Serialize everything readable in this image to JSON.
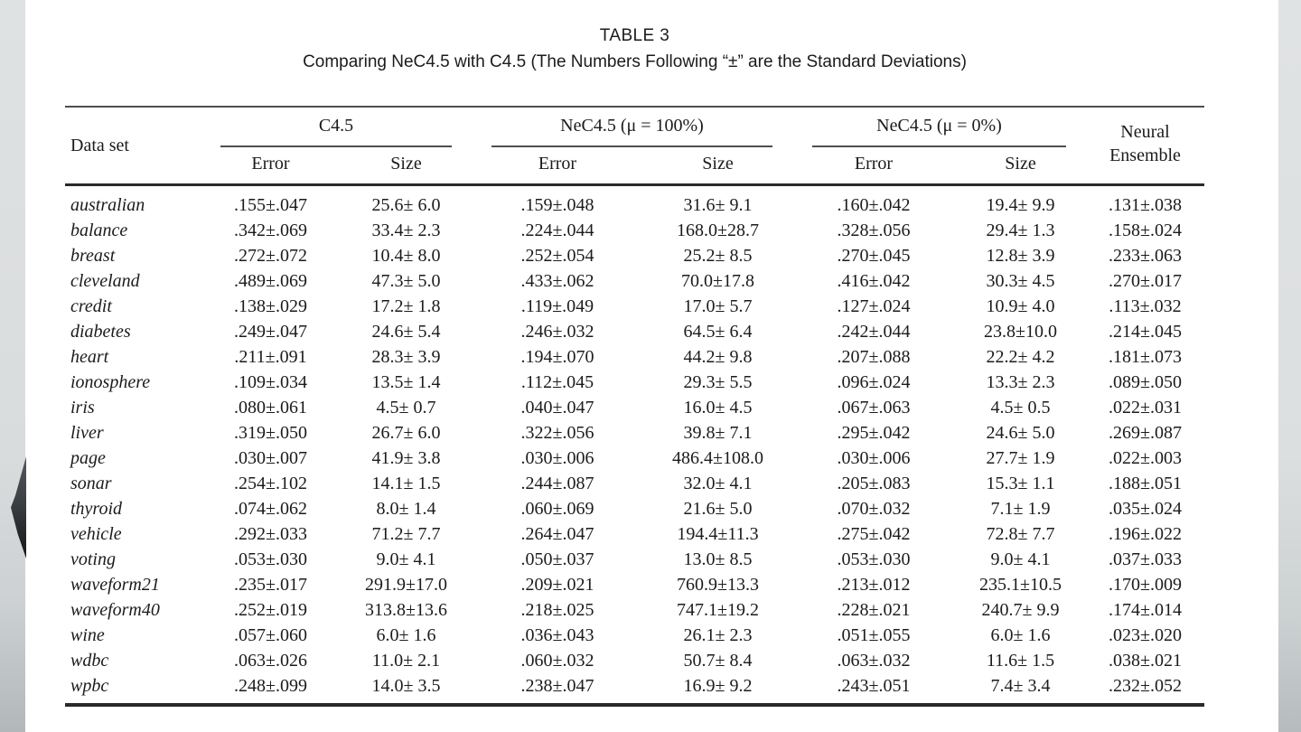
{
  "title": "TABLE 3",
  "subtitle": "Comparing NeC4.5 with C4.5 (The Numbers Following “±” are the Standard Deviations)",
  "table": {
    "row_header": "Data set",
    "groups": [
      {
        "label": "C4.5",
        "cols": [
          "Error",
          "Size"
        ]
      },
      {
        "label": "NeC4.5 (μ = 100%)",
        "cols": [
          "Error",
          "Size"
        ]
      },
      {
        "label": "NeC4.5 (μ = 0%)",
        "cols": [
          "Error",
          "Size"
        ]
      },
      {
        "label": "Neural Ensemble",
        "line1": "Neural",
        "line2": "Ensemble"
      }
    ],
    "rows": [
      [
        "australian",
        ".155±.047",
        "25.6± 6.0",
        ".159±.048",
        "31.6± 9.1",
        ".160±.042",
        "19.4± 9.9",
        ".131±.038"
      ],
      [
        "balance",
        ".342±.069",
        "33.4± 2.3",
        ".224±.044",
        "168.0±28.7",
        ".328±.056",
        "29.4± 1.3",
        ".158±.024"
      ],
      [
        "breast",
        ".272±.072",
        "10.4± 8.0",
        ".252±.054",
        "25.2± 8.5",
        ".270±.045",
        "12.8± 3.9",
        ".233±.063"
      ],
      [
        "cleveland",
        ".489±.069",
        "47.3± 5.0",
        ".433±.062",
        "70.0±17.8",
        ".416±.042",
        "30.3± 4.5",
        ".270±.017"
      ],
      [
        "credit",
        ".138±.029",
        "17.2± 1.8",
        ".119±.049",
        "17.0± 5.7",
        ".127±.024",
        "10.9± 4.0",
        ".113±.032"
      ],
      [
        "diabetes",
        ".249±.047",
        "24.6± 5.4",
        ".246±.032",
        "64.5± 6.4",
        ".242±.044",
        "23.8±10.0",
        ".214±.045"
      ],
      [
        "heart",
        ".211±.091",
        "28.3± 3.9",
        ".194±.070",
        "44.2± 9.8",
        ".207±.088",
        "22.2± 4.2",
        ".181±.073"
      ],
      [
        "ionosphere",
        ".109±.034",
        "13.5± 1.4",
        ".112±.045",
        "29.3± 5.5",
        ".096±.024",
        "13.3± 2.3",
        ".089±.050"
      ],
      [
        "iris",
        ".080±.061",
        "4.5± 0.7",
        ".040±.047",
        "16.0± 4.5",
        ".067±.063",
        "4.5± 0.5",
        ".022±.031"
      ],
      [
        "liver",
        ".319±.050",
        "26.7± 6.0",
        ".322±.056",
        "39.8± 7.1",
        ".295±.042",
        "24.6± 5.0",
        ".269±.087"
      ],
      [
        "page",
        ".030±.007",
        "41.9± 3.8",
        ".030±.006",
        "486.4±108.0",
        ".030±.006",
        "27.7± 1.9",
        ".022±.003"
      ],
      [
        "sonar",
        ".254±.102",
        "14.1± 1.5",
        ".244±.087",
        "32.0± 4.1",
        ".205±.083",
        "15.3± 1.1",
        ".188±.051"
      ],
      [
        "thyroid",
        ".074±.062",
        "8.0± 1.4",
        ".060±.069",
        "21.6± 5.0",
        ".070±.032",
        "7.1± 1.9",
        ".035±.024"
      ],
      [
        "vehicle",
        ".292±.033",
        "71.2± 7.7",
        ".264±.047",
        "194.4±11.3",
        ".275±.042",
        "72.8± 7.7",
        ".196±.022"
      ],
      [
        "voting",
        ".053±.030",
        "9.0± 4.1",
        ".050±.037",
        "13.0± 8.5",
        ".053±.030",
        "9.0± 4.1",
        ".037±.033"
      ],
      [
        "waveform21",
        ".235±.017",
        "291.9±17.0",
        ".209±.021",
        "760.9±13.3",
        ".213±.012",
        "235.1±10.5",
        ".170±.009"
      ],
      [
        "waveform40",
        ".252±.019",
        "313.8±13.6",
        ".218±.025",
        "747.1±19.2",
        ".228±.021",
        "240.7± 9.9",
        ".174±.014"
      ],
      [
        "wine",
        ".057±.060",
        "6.0± 1.6",
        ".036±.043",
        "26.1± 2.3",
        ".051±.055",
        "6.0± 1.6",
        ".023±.020"
      ],
      [
        "wdbc",
        ".063±.026",
        "11.0± 2.1",
        ".060±.032",
        "50.7± 8.4",
        ".063±.032",
        "11.6± 1.5",
        ".038±.021"
      ],
      [
        "wpbc",
        ".248±.099",
        "14.0± 3.5",
        ".238±.047",
        "16.9± 9.2",
        ".243±.051",
        "7.4± 3.4",
        ".232±.052"
      ]
    ]
  }
}
